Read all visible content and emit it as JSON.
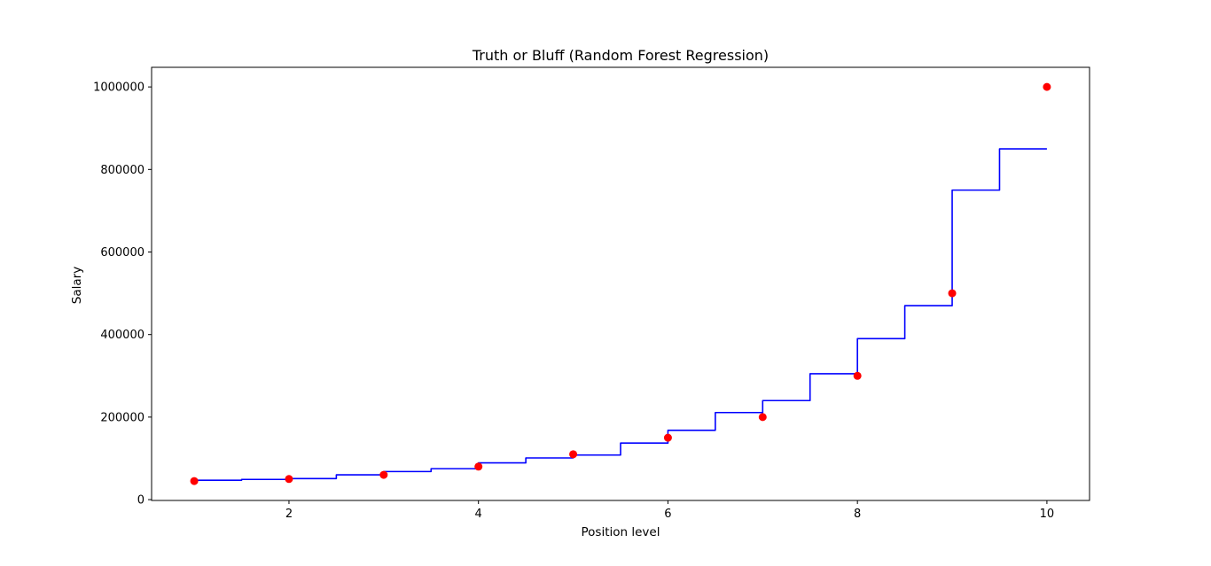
{
  "chart_data": {
    "type": "scatter",
    "title": "Truth or Bluff (Random Forest Regression)",
    "xlabel": "Position level",
    "ylabel": "Salary",
    "xlim": [
      0.55,
      10.45
    ],
    "ylim": [
      -2000,
      1047500
    ],
    "xticks": [
      2,
      4,
      6,
      8,
      10
    ],
    "yticks": [
      0,
      200000,
      400000,
      600000,
      800000,
      1000000
    ],
    "grid": false,
    "scatter": {
      "color": "#ff0000",
      "x": [
        1,
        2,
        3,
        4,
        5,
        6,
        7,
        8,
        9,
        10
      ],
      "y": [
        45000,
        50000,
        60000,
        80000,
        110000,
        150000,
        200000,
        300000,
        500000,
        1000000
      ]
    },
    "line": {
      "color": "#0000ff",
      "x": [
        1.0,
        1.5,
        1.5,
        2.0,
        2.0,
        2.5,
        2.5,
        3.0,
        3.0,
        3.5,
        3.5,
        4.0,
        4.0,
        4.5,
        4.5,
        5.0,
        5.0,
        5.5,
        5.5,
        6.0,
        6.0,
        6.5,
        6.5,
        7.0,
        7.0,
        7.5,
        7.5,
        8.0,
        8.0,
        8.5,
        8.5,
        9.0,
        9.0,
        9.5,
        9.5,
        10.0
      ],
      "y": [
        47000,
        47000,
        49000,
        49000,
        51000,
        51000,
        60000,
        60000,
        68000,
        68000,
        75000,
        75000,
        89000,
        89000,
        101000,
        101000,
        108000,
        108000,
        137000,
        137000,
        168000,
        168000,
        211000,
        211000,
        240000,
        240000,
        305000,
        305000,
        390000,
        390000,
        470000,
        470000,
        750000,
        750000,
        850000,
        850000
      ]
    }
  }
}
